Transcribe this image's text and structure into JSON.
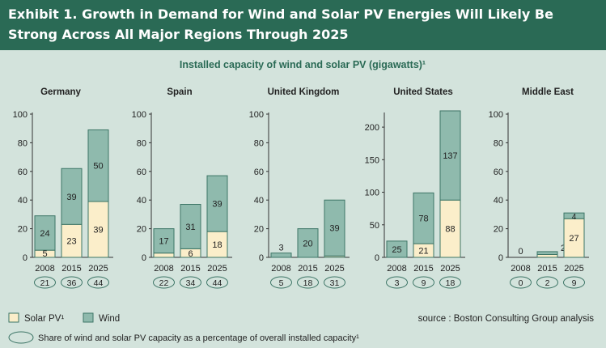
{
  "header": {
    "title": "Exhibit 1. Growth in Demand for Wind and Solar PV Energies Will Likely Be Strong Across All Major Regions Through 2025"
  },
  "subtitle": "Installed capacity of wind and solar PV (gigawatts)¹",
  "colors": {
    "header_bg": "#2a6a55",
    "page_bg": "#d3e3dc",
    "subtitle": "#2a6a55",
    "solar": "#fbeeca",
    "wind": "#8fbaad",
    "stroke": "#3d7566"
  },
  "legend": {
    "solar": "Solar PV¹",
    "wind": "Wind",
    "share_note": "Share of wind and solar PV capacity as a percentage of overall installed capacity¹"
  },
  "source": "source : Boston Consulting Group analysis",
  "chart_data": [
    {
      "type": "bar",
      "stacked": true,
      "title": "Germany",
      "categories": [
        "2008",
        "2015",
        "2025"
      ],
      "ylim": [
        0,
        100
      ],
      "yticks": [
        0,
        20,
        40,
        60,
        80,
        100
      ],
      "series": [
        {
          "name": "Solar PV¹",
          "values": [
            5,
            23,
            39
          ]
        },
        {
          "name": "Wind",
          "values": [
            24,
            39,
            50
          ]
        }
      ],
      "labels": {
        "solar": [
          "5",
          "23",
          "39"
        ],
        "wind": [
          "24",
          "39",
          "50"
        ]
      },
      "share": [
        "21",
        "36",
        "44"
      ]
    },
    {
      "type": "bar",
      "stacked": true,
      "title": "Spain",
      "categories": [
        "2008",
        "2015",
        "2025"
      ],
      "ylim": [
        0,
        100
      ],
      "yticks": [
        0,
        20,
        40,
        60,
        80,
        100
      ],
      "series": [
        {
          "name": "Solar PV¹",
          "values": [
            3,
            6,
            18
          ]
        },
        {
          "name": "Wind",
          "values": [
            17,
            31,
            39
          ]
        }
      ],
      "labels": {
        "solar": [
          "",
          "6",
          "18"
        ],
        "wind": [
          "17",
          "31",
          "39"
        ]
      },
      "share": [
        "22",
        "34",
        "44"
      ]
    },
    {
      "type": "bar",
      "stacked": true,
      "title": "United Kingdom",
      "categories": [
        "2008",
        "2015",
        "2025"
      ],
      "ylim": [
        0,
        100
      ],
      "yticks": [
        0,
        20,
        40,
        60,
        80,
        100
      ],
      "series": [
        {
          "name": "Solar PV¹",
          "values": [
            0,
            0,
            1
          ]
        },
        {
          "name": "Wind",
          "values": [
            3,
            20,
            39
          ]
        }
      ],
      "labels": {
        "solar": [
          "",
          "",
          ""
        ],
        "wind": [
          "3",
          "20",
          "39"
        ]
      },
      "share": [
        "5",
        "18",
        "31"
      ]
    },
    {
      "type": "bar",
      "stacked": true,
      "title": "United States",
      "categories": [
        "2008",
        "2015",
        "2025"
      ],
      "ylim": [
        0,
        220
      ],
      "yticks": [
        0,
        50,
        100,
        150,
        200
      ],
      "series": [
        {
          "name": "Solar PV¹",
          "values": [
            0,
            21,
            88
          ]
        },
        {
          "name": "Wind",
          "values": [
            25,
            78,
            137
          ]
        }
      ],
      "labels": {
        "solar": [
          "",
          "21",
          "88"
        ],
        "wind": [
          "25",
          "78",
          "137"
        ]
      },
      "share": [
        "3",
        "9",
        "18"
      ]
    },
    {
      "type": "bar",
      "stacked": true,
      "title": "Middle East",
      "categories": [
        "2008",
        "2015",
        "2025"
      ],
      "ylim": [
        0,
        100
      ],
      "yticks": [
        0,
        20,
        40,
        60,
        80,
        100
      ],
      "series": [
        {
          "name": "Solar PV¹",
          "values": [
            0,
            2,
            27
          ]
        },
        {
          "name": "Wind",
          "values": [
            0,
            2,
            4
          ]
        }
      ],
      "labels": {
        "solar": [
          "",
          "",
          ""
        ],
        "wind": [
          "0",
          "2",
          "4"
        ]
      },
      "extra_labels": [
        "27"
      ],
      "share": [
        "0",
        "2",
        "9"
      ]
    }
  ]
}
